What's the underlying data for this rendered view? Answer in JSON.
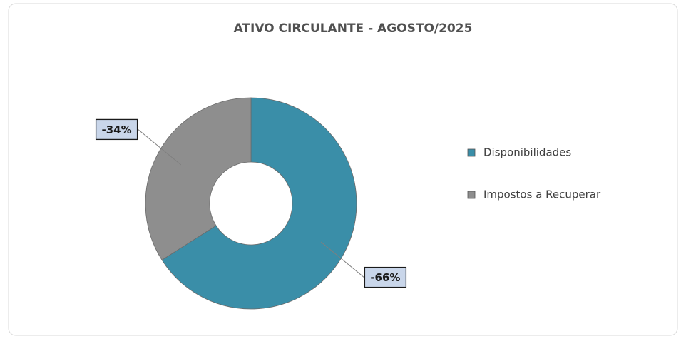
{
  "chart_data": {
    "type": "donut",
    "title": "ATIVO CIRCULANTE  - AGOSTO/2025",
    "categories": [
      "Disponibilidades",
      "Impostos a Recuperar"
    ],
    "values": [
      -66,
      -34
    ],
    "value_labels": [
      "-66%",
      "-34%"
    ],
    "colors": [
      "#3a8ea8",
      "#8e8e8e"
    ],
    "legend": "right"
  }
}
